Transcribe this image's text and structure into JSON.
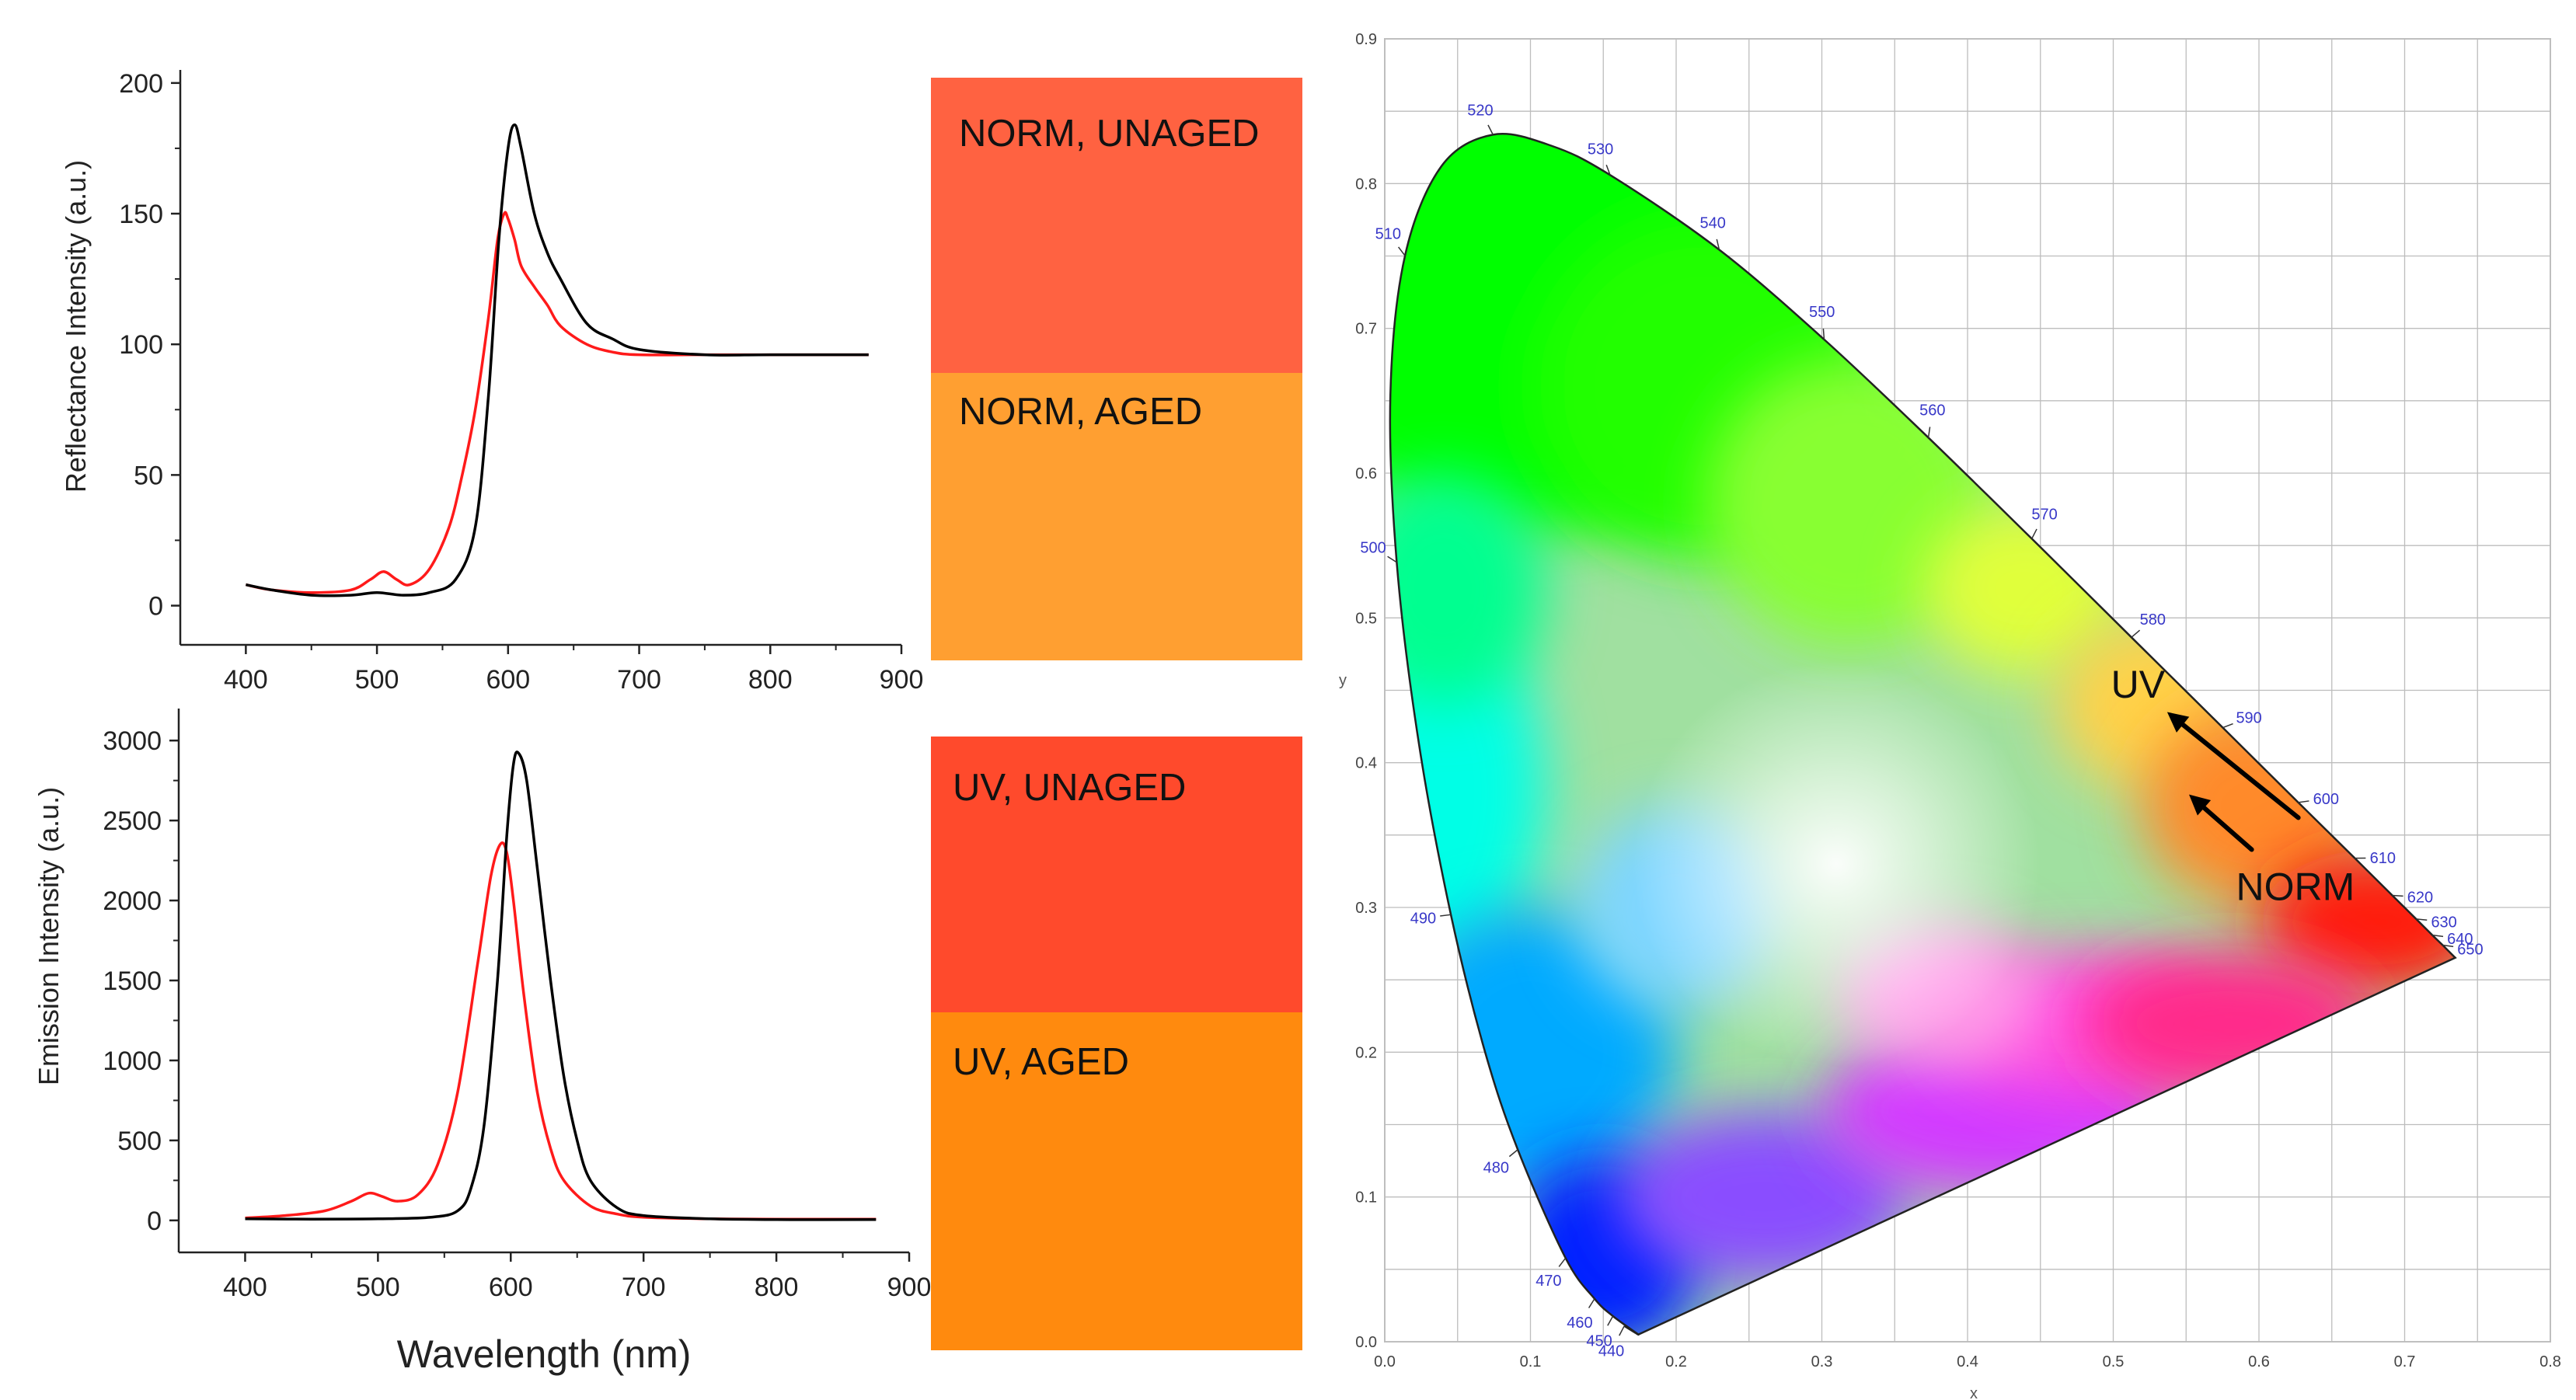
{
  "figure": {
    "colors": {
      "unaged": "#000000",
      "aged": "#ff1a1a",
      "grid": "#bdbdbd",
      "cie_tick": "#3838c8",
      "cie_axis_text": "#444444"
    },
    "swatches": [
      {
        "label": "NORM, UNAGED",
        "color": "#ff6241"
      },
      {
        "label": "NORM, AGED",
        "color": "#ff9f31"
      },
      {
        "label": "UV, UNAGED",
        "color": "#ff4a2c"
      },
      {
        "label": "UV, AGED",
        "color": "#ff8a0e"
      }
    ]
  },
  "chart_data": [
    {
      "type": "line",
      "title": "",
      "xlabel": "",
      "ylabel": "Reflectance Intensity (a.u.)",
      "xlim": [
        350,
        900
      ],
      "ylim": [
        -15,
        205
      ],
      "xticks": [
        400,
        500,
        600,
        700,
        800,
        900
      ],
      "yticks": [
        0,
        50,
        100,
        150,
        200
      ],
      "series": [
        {
          "name": "NORM, UNAGED",
          "color": "#000000",
          "x": [
            400,
            420,
            450,
            480,
            500,
            520,
            540,
            560,
            575,
            585,
            593,
            600,
            605,
            610,
            620,
            630,
            640,
            660,
            680,
            700,
            750,
            800,
            875
          ],
          "y": [
            8,
            6,
            4,
            4,
            5,
            4,
            5,
            10,
            30,
            80,
            140,
            175,
            184,
            175,
            150,
            135,
            125,
            108,
            102,
            98,
            96,
            96,
            96
          ]
        },
        {
          "name": "NORM, AGED",
          "color": "#ff1a1a",
          "x": [
            400,
            420,
            450,
            480,
            495,
            505,
            515,
            525,
            540,
            555,
            565,
            575,
            585,
            592,
            597,
            600,
            605,
            610,
            620,
            630,
            640,
            660,
            680,
            700,
            750,
            800,
            875
          ],
          "y": [
            8,
            6,
            5,
            6,
            10,
            13,
            10,
            8,
            14,
            30,
            50,
            75,
            110,
            140,
            150,
            148,
            140,
            130,
            122,
            115,
            107,
            100,
            97,
            96,
            96,
            96,
            96
          ]
        }
      ]
    },
    {
      "type": "line",
      "title": "",
      "xlabel": "Wavelength (nm)",
      "ylabel": "Emission Intensity (a.u.)",
      "xlim": [
        350,
        900
      ],
      "ylim": [
        -200,
        3200
      ],
      "xticks": [
        400,
        500,
        600,
        700,
        800,
        900
      ],
      "yticks": [
        0,
        500,
        1000,
        1500,
        2000,
        2500,
        3000
      ],
      "series": [
        {
          "name": "UV, UNAGED",
          "color": "#000000",
          "x": [
            400,
            450,
            500,
            540,
            560,
            570,
            580,
            590,
            597,
            602,
            606,
            612,
            620,
            630,
            640,
            650,
            660,
            680,
            700,
            750,
            800,
            875
          ],
          "y": [
            10,
            8,
            10,
            20,
            60,
            200,
            600,
            1500,
            2400,
            2850,
            2920,
            2750,
            2200,
            1500,
            900,
            500,
            250,
            80,
            30,
            10,
            5,
            5
          ]
        },
        {
          "name": "UV, AGED",
          "color": "#ff1a1a",
          "x": [
            400,
            430,
            460,
            480,
            493,
            503,
            515,
            530,
            545,
            560,
            575,
            585,
            592,
            597,
            602,
            610,
            620,
            630,
            640,
            660,
            680,
            700,
            750,
            800,
            875
          ],
          "y": [
            15,
            30,
            60,
            120,
            170,
            150,
            120,
            160,
            350,
            800,
            1600,
            2150,
            2350,
            2300,
            2000,
            1400,
            800,
            450,
            250,
            90,
            40,
            20,
            10,
            8,
            8
          ]
        }
      ]
    },
    {
      "type": "scatter",
      "title": "",
      "subtype": "CIE 1931 chromaticity diagram",
      "xlabel": "x",
      "ylabel": "y",
      "xlim": [
        0,
        0.8
      ],
      "ylim": [
        0,
        0.9
      ],
      "xticks": [
        0.0,
        0.1,
        0.2,
        0.3,
        0.4,
        0.5,
        0.6,
        0.7,
        0.8
      ],
      "yticks": [
        0.0,
        0.1,
        0.2,
        0.3,
        0.4,
        0.5,
        0.6,
        0.7,
        0.8,
        0.9
      ],
      "wavelength_labels": [
        {
          "label": "440",
          "x": 0.1644,
          "y": 0.0109
        },
        {
          "label": "450",
          "x": 0.1566,
          "y": 0.0177
        },
        {
          "label": "460",
          "x": 0.144,
          "y": 0.0297
        },
        {
          "label": "470",
          "x": 0.1241,
          "y": 0.0578
        },
        {
          "label": "480",
          "x": 0.0913,
          "y": 0.1327
        },
        {
          "label": "490",
          "x": 0.0454,
          "y": 0.295
        },
        {
          "label": "500",
          "x": 0.0082,
          "y": 0.5384
        },
        {
          "label": "510",
          "x": 0.0139,
          "y": 0.7502
        },
        {
          "label": "520",
          "x": 0.0743,
          "y": 0.8338
        },
        {
          "label": "530",
          "x": 0.1547,
          "y": 0.8059
        },
        {
          "label": "540",
          "x": 0.2296,
          "y": 0.7543
        },
        {
          "label": "550",
          "x": 0.3016,
          "y": 0.6923
        },
        {
          "label": "560",
          "x": 0.3731,
          "y": 0.6245
        },
        {
          "label": "570",
          "x": 0.4441,
          "y": 0.5547
        },
        {
          "label": "580",
          "x": 0.5125,
          "y": 0.4866
        },
        {
          "label": "590",
          "x": 0.5752,
          "y": 0.4242
        },
        {
          "label": "600",
          "x": 0.627,
          "y": 0.3725
        },
        {
          "label": "610",
          "x": 0.6658,
          "y": 0.334
        },
        {
          "label": "620",
          "x": 0.6915,
          "y": 0.3083
        },
        {
          "label": "630",
          "x": 0.7079,
          "y": 0.292
        },
        {
          "label": "640",
          "x": 0.719,
          "y": 0.2809
        },
        {
          "label": "650",
          "x": 0.726,
          "y": 0.274
        }
      ],
      "annotations": [
        {
          "text": "UV",
          "x": 0.517,
          "y": 0.445
        },
        {
          "text": "NORM",
          "x": 0.625,
          "y": 0.305
        }
      ],
      "arrows": [
        {
          "from": [
            0.627,
            0.362
          ],
          "to": [
            0.537,
            0.435
          ]
        },
        {
          "from": [
            0.595,
            0.34
          ],
          "to": [
            0.552,
            0.378
          ]
        }
      ]
    }
  ]
}
